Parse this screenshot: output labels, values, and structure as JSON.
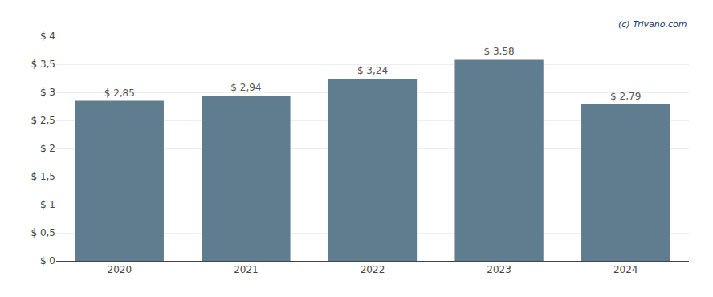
{
  "chart_data": {
    "type": "bar",
    "categories": [
      "2020",
      "2021",
      "2022",
      "2023",
      "2024"
    ],
    "values": [
      2.85,
      2.94,
      3.24,
      3.58,
      2.79
    ],
    "value_labels": [
      "$ 2,85",
      "$ 2,94",
      "$ 3,24",
      "$ 3,58",
      "$ 2,79"
    ],
    "data_labels": true,
    "color": "#607d8f",
    "ylim": [
      0,
      4.0
    ],
    "yticks": [
      {
        "value": 0,
        "label": "$ 0"
      },
      {
        "value": 0.5,
        "label": "$ 0,5"
      },
      {
        "value": 1.0,
        "label": "$ 1"
      },
      {
        "value": 1.5,
        "label": "$ 1,5"
      },
      {
        "value": 2.0,
        "label": "$ 2"
      },
      {
        "value": 2.5,
        "label": "$ 2,5"
      },
      {
        "value": 3.0,
        "label": "$ 3"
      },
      {
        "value": 3.5,
        "label": "$ 3,5"
      },
      {
        "value": 4.0,
        "label": "$ 4"
      }
    ],
    "grid": true,
    "annotations": [
      "(c) Trivano.com"
    ]
  }
}
